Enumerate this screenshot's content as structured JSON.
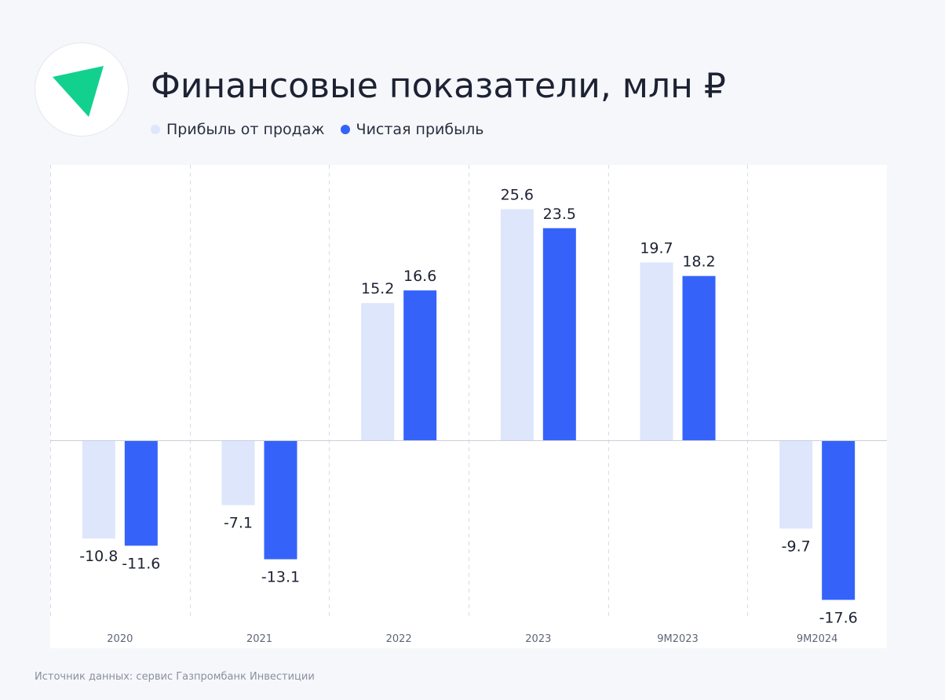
{
  "logo": {
    "icon": "triangle-logo-icon",
    "color": "#12d18e"
  },
  "title": "Финансовые показатели, млн ₽",
  "legend": [
    {
      "label": "Прибыль от продаж",
      "color": "#dde6fb"
    },
    {
      "label": "Чистая прибыль",
      "color": "#3563fa"
    }
  ],
  "chart_data": {
    "type": "bar",
    "title": "Финансовые показатели, млн ₽",
    "xlabel": "",
    "ylabel": "",
    "ylim": [
      -18.5,
      28.5
    ],
    "grid": false,
    "legend_position": "top-left",
    "categories": [
      "2020",
      "2021",
      "2022",
      "2023",
      "9M2023",
      "9M2024"
    ],
    "series": [
      {
        "name": "Прибыль от продаж",
        "color": "#dde6fb",
        "values": [
          -10.8,
          -7.1,
          15.2,
          25.6,
          19.7,
          -9.7
        ],
        "labels": [
          "-10.8",
          "-7.1",
          "15.2",
          "25.6",
          "19.7",
          "-9.7"
        ]
      },
      {
        "name": "Чистая прибыль",
        "color": "#3563fa",
        "values": [
          -11.6,
          -13.1,
          16.6,
          23.5,
          18.2,
          -17.6
        ],
        "labels": [
          "-11.6",
          "-13.1",
          "16.6",
          "23.5",
          "18.2",
          "-17.6"
        ]
      }
    ]
  },
  "source": "Источник данных: сервис Газпромбанк Инвестиции"
}
